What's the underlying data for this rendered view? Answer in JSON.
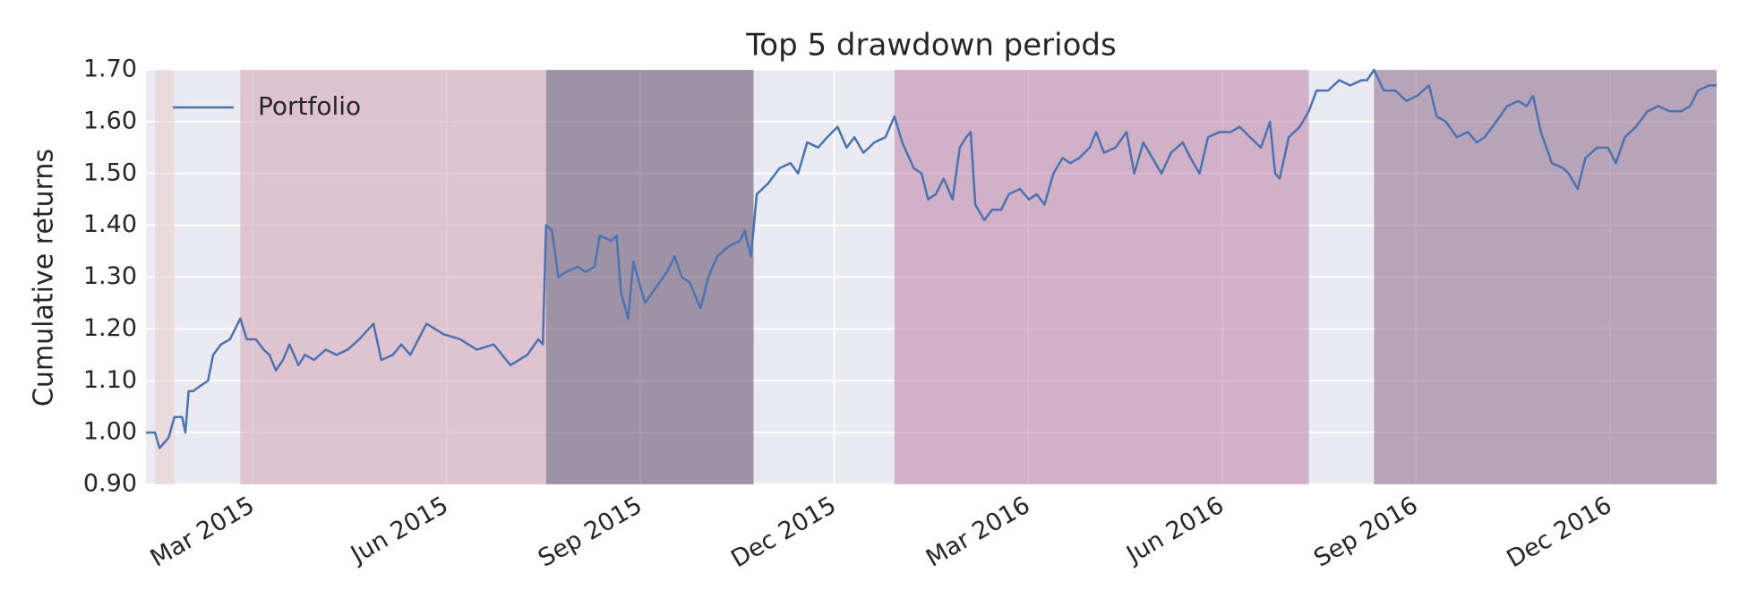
{
  "chart_data": {
    "type": "line",
    "title": "Top 5 drawdown periods",
    "y_label": "Cumulative returns",
    "legend_loc": "upper left",
    "grid": true,
    "xlim": [
      0.35,
      24.65
    ],
    "xticks": [
      {
        "value": 2,
        "label": "Mar 2015"
      },
      {
        "value": 5,
        "label": "Jun 2015"
      },
      {
        "value": 8,
        "label": "Sep 2015"
      },
      {
        "value": 11,
        "label": "Dec 2015"
      },
      {
        "value": 14,
        "label": "Mar 2016"
      },
      {
        "value": 17,
        "label": "Jun 2016"
      },
      {
        "value": 20,
        "label": "Sep 2016"
      },
      {
        "value": 23,
        "label": "Dec 2016"
      }
    ],
    "ylim": [
      0.9,
      1.7
    ],
    "yticks": [
      {
        "value": 0.9,
        "label": "0.90"
      },
      {
        "value": 1.0,
        "label": "1.00"
      },
      {
        "value": 1.1,
        "label": "1.10"
      },
      {
        "value": 1.2,
        "label": "1.20"
      },
      {
        "value": 1.3,
        "label": "1.30"
      },
      {
        "value": 1.4,
        "label": "1.40"
      },
      {
        "value": 1.5,
        "label": "1.50"
      },
      {
        "value": 1.6,
        "label": "1.60"
      },
      {
        "value": 1.7,
        "label": "1.70"
      }
    ],
    "span_opacity": 0.6,
    "spans": [
      {
        "start": 0.49,
        "end": 0.79,
        "color": "#e8cecf"
      },
      {
        "start": 1.81,
        "end": 6.54,
        "color": "#d6a9bb"
      },
      {
        "start": 6.54,
        "end": 9.75,
        "color": "#6a5973"
      },
      {
        "start": 11.93,
        "end": 18.34,
        "color": "#bf8bac"
      },
      {
        "start": 19.35,
        "end": 24.65,
        "color": "#947493"
      }
    ],
    "x": [
      0.35,
      0.49,
      0.56,
      0.7,
      0.79,
      0.91,
      0.96,
      1.01,
      1.08,
      1.19,
      1.31,
      1.39,
      1.51,
      1.65,
      1.81,
      1.91,
      2.05,
      2.17,
      2.26,
      2.36,
      2.47,
      2.57,
      2.71,
      2.81,
      2.95,
      3.13,
      3.3,
      3.47,
      3.65,
      3.87,
      3.99,
      4.17,
      4.3,
      4.44,
      4.69,
      4.95,
      5.21,
      5.47,
      5.73,
      5.99,
      6.25,
      6.42,
      6.49,
      6.54,
      6.63,
      6.73,
      6.85,
      7.03,
      7.15,
      7.29,
      7.37,
      7.55,
      7.63,
      7.7,
      7.81,
      7.89,
      8.07,
      8.24,
      8.41,
      8.53,
      8.64,
      8.76,
      8.93,
      9.05,
      9.19,
      9.37,
      9.54,
      9.61,
      9.71,
      9.8,
      9.97,
      10.15,
      10.32,
      10.44,
      10.58,
      10.75,
      10.89,
      11.05,
      11.19,
      11.31,
      11.45,
      11.62,
      11.79,
      11.93,
      12.05,
      12.23,
      12.35,
      12.45,
      12.57,
      12.69,
      12.83,
      12.94,
      13.04,
      13.11,
      13.18,
      13.32,
      13.44,
      13.58,
      13.7,
      13.87,
      14.01,
      14.13,
      14.25,
      14.39,
      14.53,
      14.65,
      14.79,
      14.95,
      15.05,
      15.17,
      15.35,
      15.52,
      15.64,
      15.78,
      15.92,
      16.06,
      16.21,
      16.39,
      16.51,
      16.65,
      16.78,
      16.96,
      17.13,
      17.27,
      17.43,
      17.6,
      17.74,
      17.82,
      17.89,
      18.03,
      18.2,
      18.34,
      18.46,
      18.64,
      18.81,
      18.98,
      19.16,
      19.24,
      19.35,
      19.5,
      19.68,
      19.85,
      20.02,
      20.2,
      20.32,
      20.46,
      20.63,
      20.8,
      20.94,
      21.06,
      21.24,
      21.41,
      21.58,
      21.71,
      21.81,
      21.93,
      22.1,
      22.28,
      22.36,
      22.5,
      22.62,
      22.8,
      22.97,
      23.09,
      23.23,
      23.4,
      23.58,
      23.75,
      23.92,
      24.1,
      24.24,
      24.36,
      24.53,
      24.65
    ],
    "series": [
      {
        "name": "Portfolio",
        "color": "#4c72b0",
        "values": [
          1.0,
          1.0,
          0.97,
          0.99,
          1.03,
          1.03,
          1.0,
          1.08,
          1.08,
          1.09,
          1.1,
          1.15,
          1.17,
          1.18,
          1.22,
          1.18,
          1.18,
          1.16,
          1.15,
          1.12,
          1.14,
          1.17,
          1.13,
          1.15,
          1.14,
          1.16,
          1.15,
          1.16,
          1.18,
          1.21,
          1.14,
          1.15,
          1.17,
          1.15,
          1.21,
          1.19,
          1.18,
          1.16,
          1.17,
          1.13,
          1.15,
          1.18,
          1.17,
          1.4,
          1.39,
          1.3,
          1.31,
          1.32,
          1.31,
          1.32,
          1.38,
          1.37,
          1.38,
          1.27,
          1.22,
          1.33,
          1.25,
          1.28,
          1.31,
          1.34,
          1.3,
          1.29,
          1.24,
          1.3,
          1.34,
          1.36,
          1.37,
          1.39,
          1.34,
          1.46,
          1.48,
          1.51,
          1.52,
          1.5,
          1.56,
          1.55,
          1.57,
          1.59,
          1.55,
          1.57,
          1.54,
          1.56,
          1.57,
          1.61,
          1.56,
          1.51,
          1.5,
          1.45,
          1.46,
          1.49,
          1.45,
          1.55,
          1.57,
          1.58,
          1.44,
          1.41,
          1.43,
          1.43,
          1.46,
          1.47,
          1.45,
          1.46,
          1.44,
          1.5,
          1.53,
          1.52,
          1.53,
          1.55,
          1.58,
          1.54,
          1.55,
          1.58,
          1.5,
          1.56,
          1.53,
          1.5,
          1.54,
          1.56,
          1.53,
          1.5,
          1.57,
          1.58,
          1.58,
          1.59,
          1.57,
          1.55,
          1.6,
          1.5,
          1.49,
          1.57,
          1.59,
          1.62,
          1.66,
          1.66,
          1.68,
          1.67,
          1.68,
          1.68,
          1.7,
          1.66,
          1.66,
          1.64,
          1.65,
          1.67,
          1.61,
          1.6,
          1.57,
          1.58,
          1.56,
          1.57,
          1.6,
          1.63,
          1.64,
          1.63,
          1.65,
          1.58,
          1.52,
          1.51,
          1.5,
          1.47,
          1.53,
          1.55,
          1.55,
          1.52,
          1.57,
          1.59,
          1.62,
          1.63,
          1.62,
          1.62,
          1.63,
          1.66,
          1.67,
          1.67
        ]
      }
    ]
  }
}
